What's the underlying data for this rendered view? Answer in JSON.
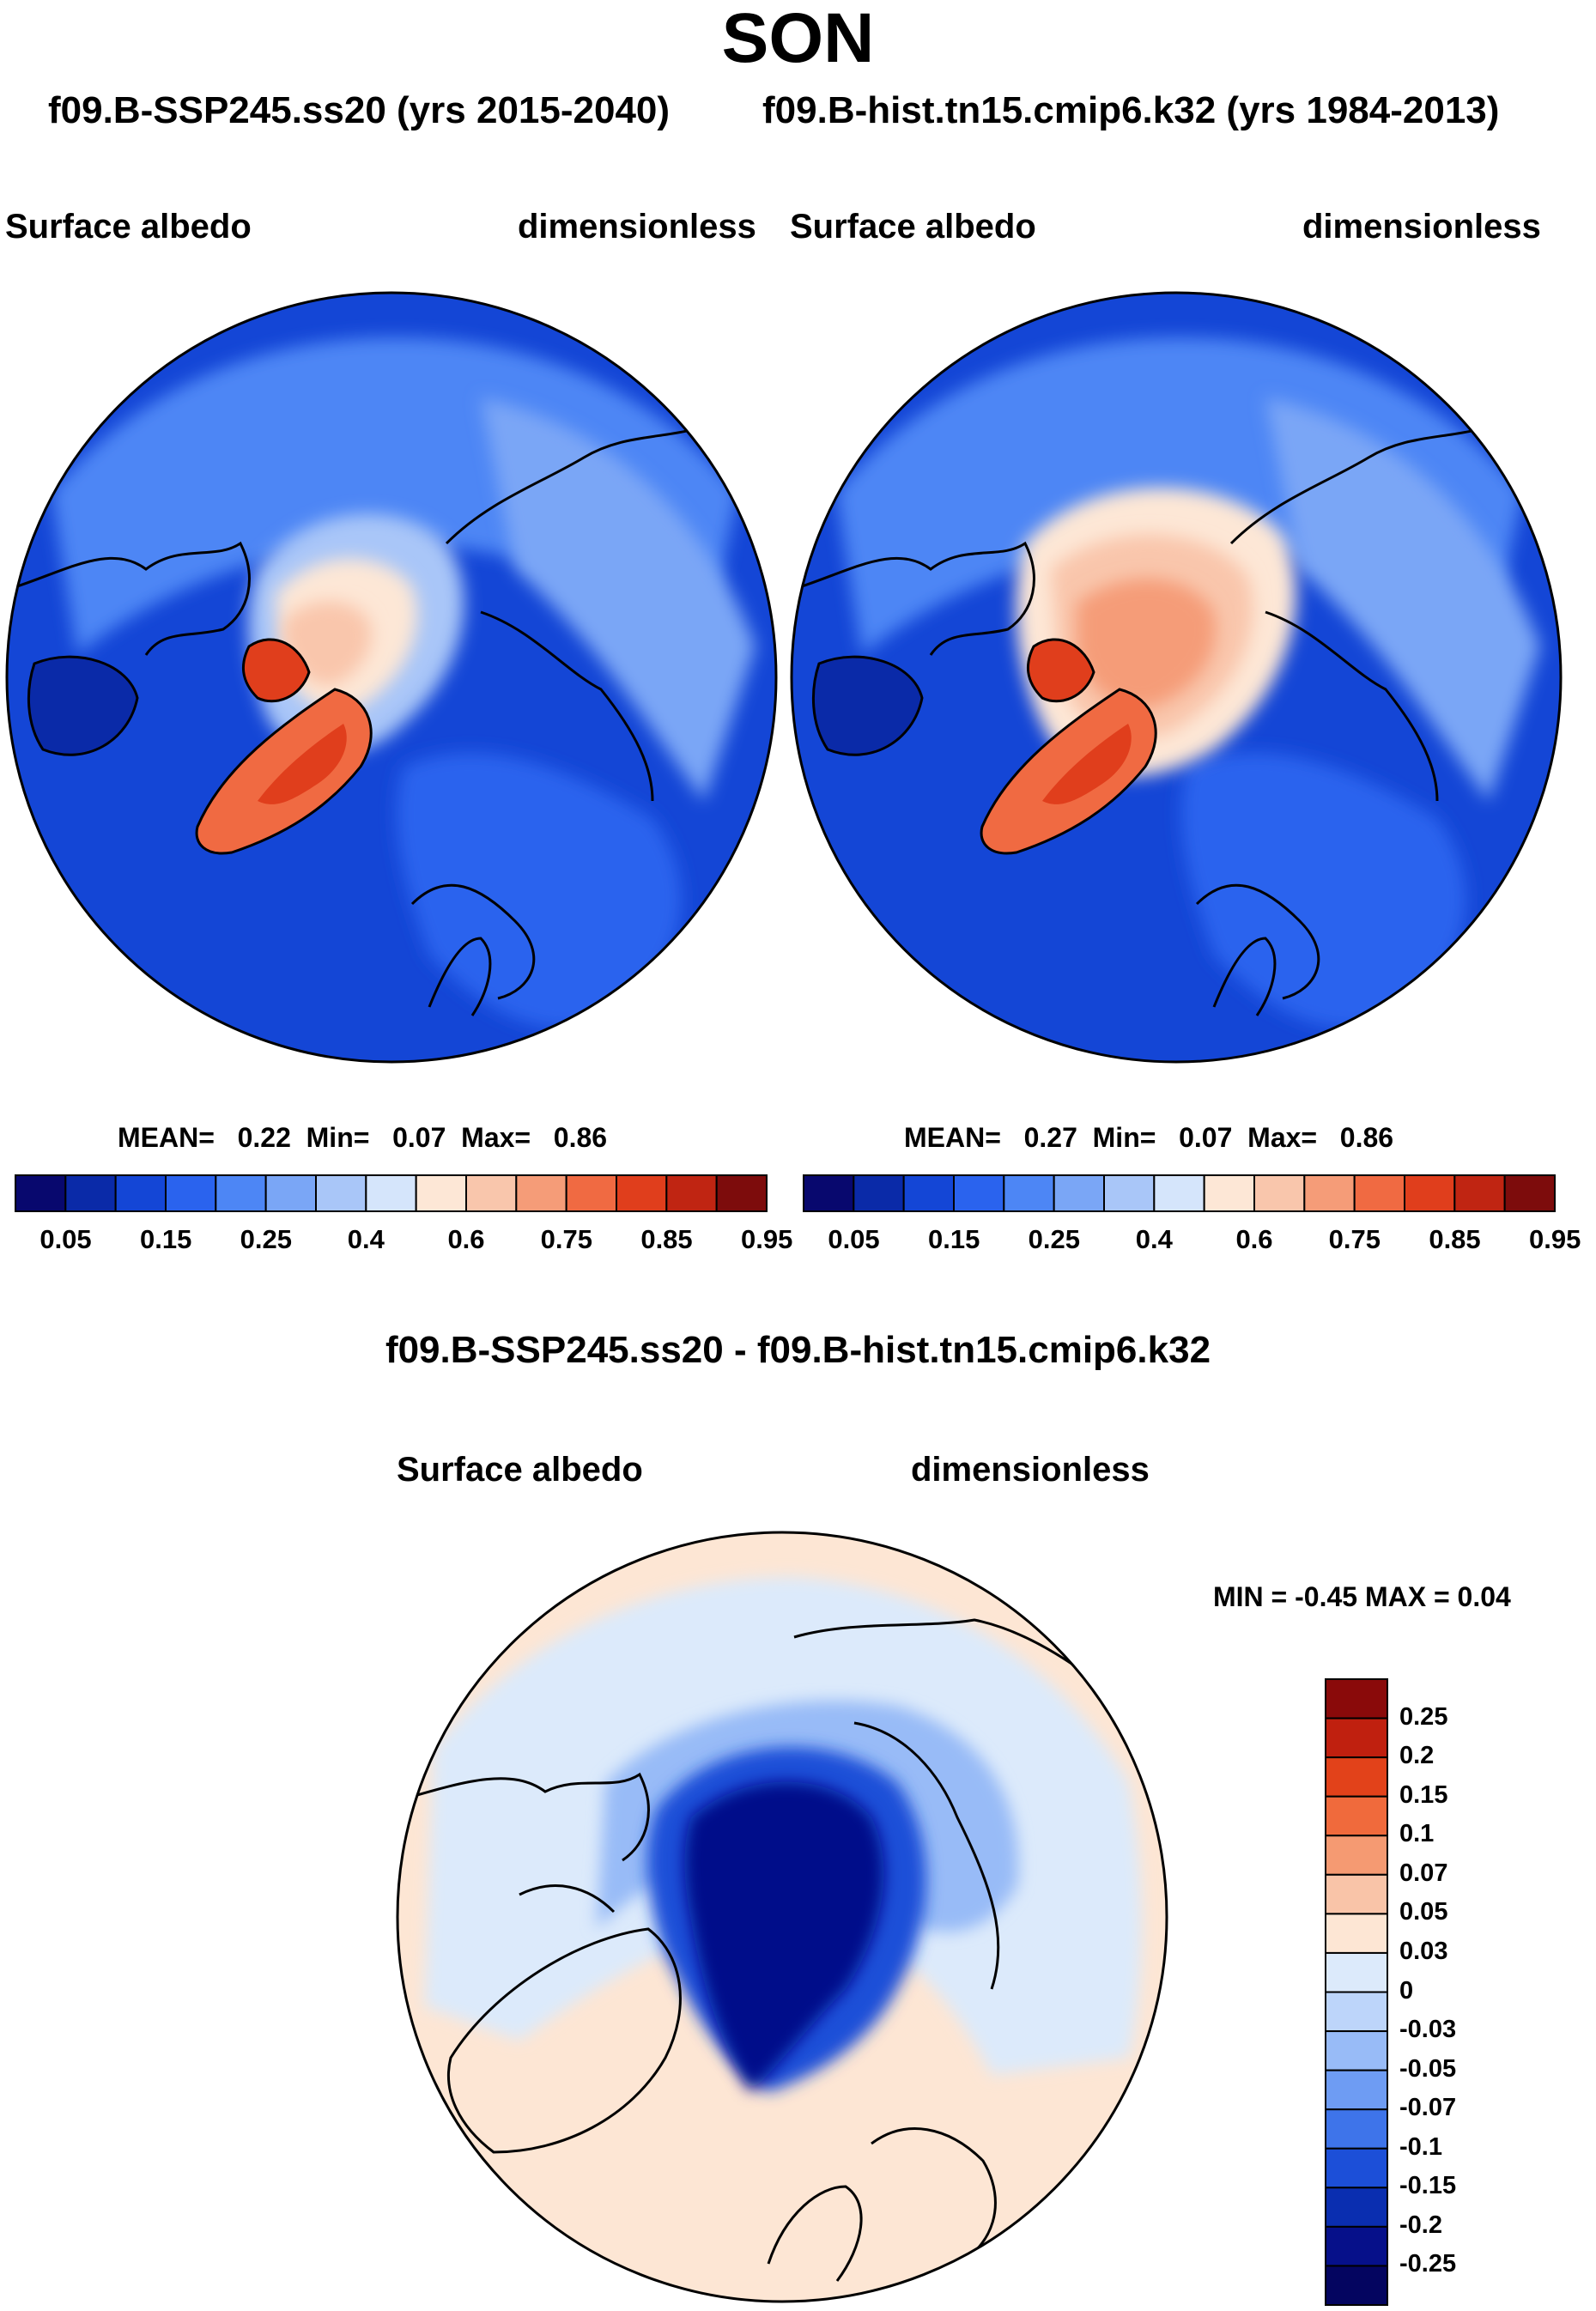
{
  "main_title": "SON",
  "subtitle_left": "f09.B-SSP245.ss20 (yrs 2015-2040)",
  "subtitle_right": "f09.B-hist.tn15.cmip6.k32 (yrs 1984-2013)",
  "chart_data": [
    {
      "type": "heatmap",
      "projection": "north-polar-stereographic",
      "label_left": "Surface albedo",
      "label_right": "dimensionless",
      "stats": {
        "mean_label": "MEAN=",
        "mean": "0.22",
        "min_label": "Min=",
        "min": "0.07",
        "max_label": "Max=",
        "max": "0.86"
      },
      "colorbar": {
        "colors": [
          "#08086e",
          "#0a2aa8",
          "#1446d6",
          "#2a63ee",
          "#4d86f5",
          "#7aa6f6",
          "#a9c6f8",
          "#d5e5fb",
          "#fde7d6",
          "#f9c6ac",
          "#f59c78",
          "#f06a42",
          "#e03e1c",
          "#c02512",
          "#7d0c0c"
        ],
        "tick_labels": [
          "0.05",
          "0.15",
          "0.25",
          "0.4",
          "0.6",
          "0.75",
          "0.85",
          "0.95"
        ]
      }
    },
    {
      "type": "heatmap",
      "projection": "north-polar-stereographic",
      "label_left": "Surface albedo",
      "label_right": "dimensionless",
      "stats": {
        "mean_label": "MEAN=",
        "mean": "0.27",
        "min_label": "Min=",
        "min": "0.07",
        "max_label": "Max=",
        "max": "0.86"
      },
      "colorbar": {
        "colors": [
          "#08086e",
          "#0a2aa8",
          "#1446d6",
          "#2a63ee",
          "#4d86f5",
          "#7aa6f6",
          "#a9c6f8",
          "#d5e5fb",
          "#fde7d6",
          "#f9c6ac",
          "#f59c78",
          "#f06a42",
          "#e03e1c",
          "#c02512",
          "#7d0c0c"
        ],
        "tick_labels": [
          "0.05",
          "0.15",
          "0.25",
          "0.4",
          "0.6",
          "0.75",
          "0.85",
          "0.95"
        ]
      }
    },
    {
      "type": "heatmap",
      "projection": "north-polar-stereographic",
      "title": "f09.B-SSP245.ss20 - f09.B-hist.tn15.cmip6.k32",
      "label_left": "Surface albedo",
      "label_right": "dimensionless",
      "minmax_text": "MIN =  -0.45 MAX =   0.04",
      "colorbar": {
        "colors": [
          "#8a0a0a",
          "#c0200f",
          "#e2421a",
          "#f06a3c",
          "#f59a72",
          "#f9c4a8",
          "#fde6d4",
          "#dceafb",
          "#bdd5fa",
          "#98bbf7",
          "#6e9cf3",
          "#3e74ea",
          "#1c4fd8",
          "#0a2eb0",
          "#06108a",
          "#040560"
        ],
        "labels": [
          "0.25",
          "0.2",
          "0.15",
          "0.1",
          "0.07",
          "0.05",
          "0.03",
          "0",
          "-0.03",
          "-0.05",
          "-0.07",
          "-0.1",
          "-0.15",
          "-0.2",
          "-0.25"
        ]
      }
    }
  ]
}
